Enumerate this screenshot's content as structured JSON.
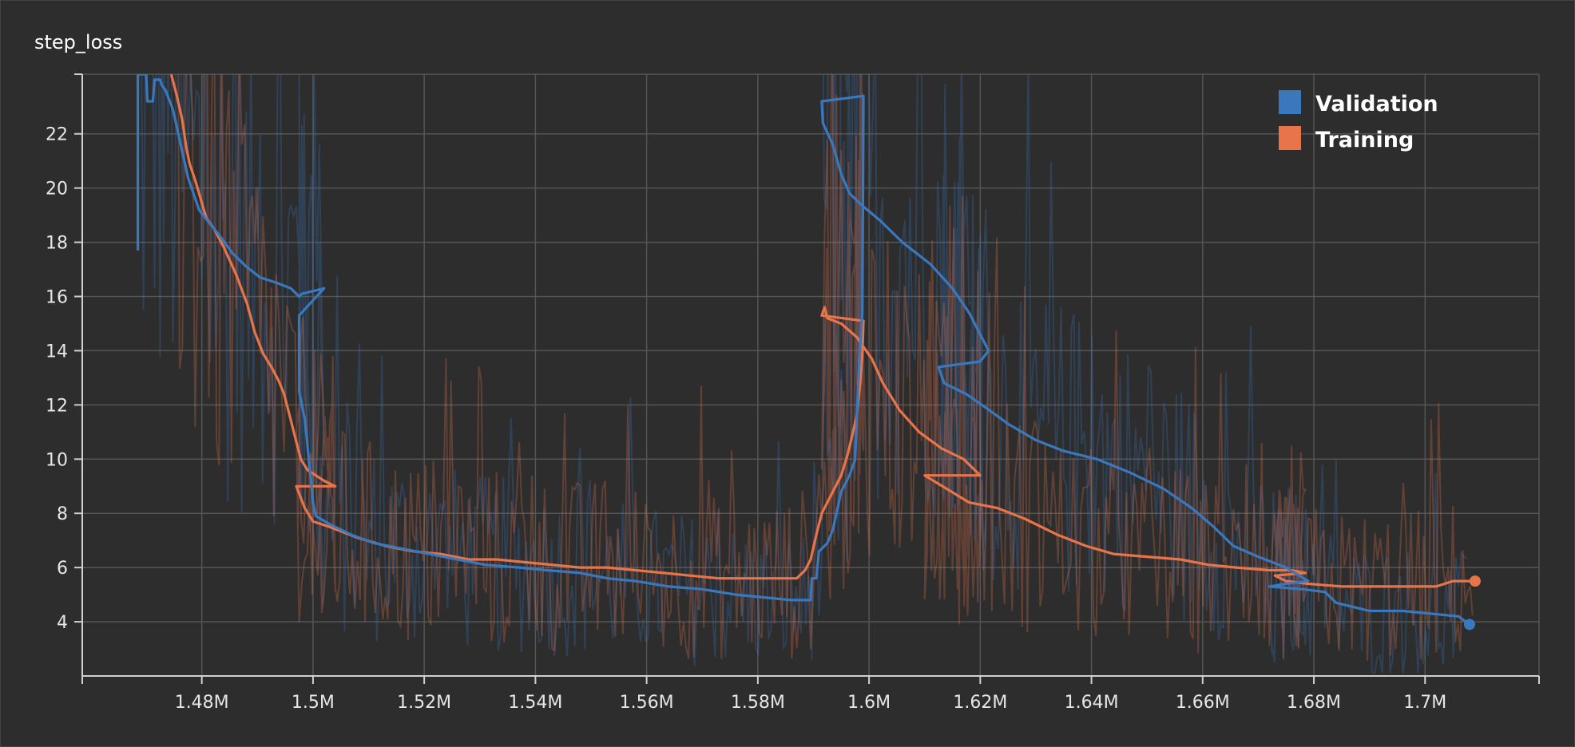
{
  "panel": {
    "title": "step_loss"
  },
  "chart_data": {
    "type": "line",
    "title": "step_loss",
    "xlabel": "",
    "ylabel": "",
    "xlim": [
      1.4585,
      1.7205
    ],
    "ylim": [
      2,
      24.2
    ],
    "x_ticks": [
      {
        "v": 1.48,
        "label": "1.48M"
      },
      {
        "v": 1.5,
        "label": "1.5M"
      },
      {
        "v": 1.52,
        "label": "1.52M"
      },
      {
        "v": 1.54,
        "label": "1.54M"
      },
      {
        "v": 1.56,
        "label": "1.56M"
      },
      {
        "v": 1.58,
        "label": "1.58M"
      },
      {
        "v": 1.6,
        "label": "1.6M"
      },
      {
        "v": 1.62,
        "label": "1.62M"
      },
      {
        "v": 1.64,
        "label": "1.64M"
      },
      {
        "v": 1.66,
        "label": "1.66M"
      },
      {
        "v": 1.68,
        "label": "1.68M"
      },
      {
        "v": 1.7,
        "label": "1.7M"
      }
    ],
    "y_ticks": [
      {
        "v": 4,
        "label": "4"
      },
      {
        "v": 6,
        "label": "6"
      },
      {
        "v": 8,
        "label": "8"
      },
      {
        "v": 10,
        "label": "10"
      },
      {
        "v": 12,
        "label": "12"
      },
      {
        "v": 14,
        "label": "14"
      },
      {
        "v": 16,
        "label": "16"
      },
      {
        "v": 18,
        "label": "18"
      },
      {
        "v": 20,
        "label": "20"
      },
      {
        "v": 22,
        "label": "22"
      }
    ],
    "grid": true,
    "legend_position": "top-right",
    "series": [
      {
        "name": "Validation",
        "color": "#3a78bd",
        "points": [
          [
            1.4685,
            17.7
          ],
          [
            1.4685,
            24.2
          ],
          [
            1.47,
            24.2
          ],
          [
            1.4702,
            23.2
          ],
          [
            1.4712,
            23.2
          ],
          [
            1.4715,
            24.0
          ],
          [
            1.4725,
            24.0
          ],
          [
            1.4728,
            23.8
          ],
          [
            1.4735,
            23.6
          ],
          [
            1.4748,
            22.9
          ],
          [
            1.476,
            21.8
          ],
          [
            1.4775,
            20.4
          ],
          [
            1.4785,
            19.8
          ],
          [
            1.4795,
            19.2
          ],
          [
            1.481,
            18.8
          ],
          [
            1.483,
            18.3
          ],
          [
            1.4855,
            17.6
          ],
          [
            1.488,
            17.1
          ],
          [
            1.4905,
            16.7
          ],
          [
            1.4935,
            16.5
          ],
          [
            1.496,
            16.3
          ],
          [
            1.4975,
            16.0
          ],
          [
            1.498,
            16.1
          ],
          [
            1.502,
            16.3
          ],
          [
            1.4975,
            15.3
          ],
          [
            1.4975,
            12.5
          ],
          [
            1.4985,
            11.5
          ],
          [
            1.4995,
            9.5
          ],
          [
            1.5,
            8.4
          ],
          [
            1.5005,
            7.9
          ],
          [
            1.503,
            7.6
          ],
          [
            1.507,
            7.2
          ],
          [
            1.511,
            6.9
          ],
          [
            1.516,
            6.7
          ],
          [
            1.521,
            6.5
          ],
          [
            1.526,
            6.3
          ],
          [
            1.531,
            6.1
          ],
          [
            1.537,
            6.0
          ],
          [
            1.542,
            5.9
          ],
          [
            1.548,
            5.8
          ],
          [
            1.553,
            5.6
          ],
          [
            1.558,
            5.5
          ],
          [
            1.564,
            5.3
          ],
          [
            1.57,
            5.2
          ],
          [
            1.576,
            5.0
          ],
          [
            1.581,
            4.9
          ],
          [
            1.586,
            4.8
          ],
          [
            1.5895,
            4.8
          ],
          [
            1.5897,
            5.6
          ],
          [
            1.5905,
            5.6
          ],
          [
            1.591,
            6.6
          ],
          [
            1.5925,
            6.9
          ],
          [
            1.5935,
            7.4
          ],
          [
            1.595,
            8.8
          ],
          [
            1.5965,
            9.4
          ],
          [
            1.5975,
            10.0
          ],
          [
            1.5982,
            13.5
          ],
          [
            1.5988,
            15.4
          ],
          [
            1.599,
            23.4
          ],
          [
            1.5915,
            23.2
          ],
          [
            1.5917,
            22.4
          ],
          [
            1.5935,
            21.6
          ],
          [
            1.595,
            20.5
          ],
          [
            1.5965,
            19.8
          ],
          [
            1.5985,
            19.4
          ],
          [
            1.602,
            18.8
          ],
          [
            1.606,
            18.0
          ],
          [
            1.611,
            17.2
          ],
          [
            1.615,
            16.3
          ],
          [
            1.618,
            15.4
          ],
          [
            1.62,
            14.6
          ],
          [
            1.6215,
            14.0
          ],
          [
            1.62,
            13.6
          ],
          [
            1.6125,
            13.4
          ],
          [
            1.6135,
            12.8
          ],
          [
            1.6175,
            12.4
          ],
          [
            1.621,
            11.9
          ],
          [
            1.625,
            11.3
          ],
          [
            1.63,
            10.7
          ],
          [
            1.635,
            10.3
          ],
          [
            1.641,
            10.0
          ],
          [
            1.647,
            9.5
          ],
          [
            1.653,
            8.9
          ],
          [
            1.658,
            8.2
          ],
          [
            1.662,
            7.5
          ],
          [
            1.6655,
            6.8
          ],
          [
            1.67,
            6.4
          ],
          [
            1.675,
            6.0
          ],
          [
            1.679,
            5.5
          ],
          [
            1.675,
            5.4
          ],
          [
            1.672,
            5.3
          ],
          [
            1.678,
            5.2
          ],
          [
            1.682,
            5.1
          ],
          [
            1.684,
            4.7
          ],
          [
            1.69,
            4.4
          ],
          [
            1.696,
            4.4
          ],
          [
            1.701,
            4.3
          ],
          [
            1.706,
            4.2
          ],
          [
            1.708,
            3.9
          ]
        ]
      },
      {
        "name": "Training",
        "color": "#e8744a",
        "points": [
          [
            1.4745,
            24.2
          ],
          [
            1.4755,
            23.4
          ],
          [
            1.4765,
            22.5
          ],
          [
            1.4772,
            21.5
          ],
          [
            1.4778,
            20.9
          ],
          [
            1.4788,
            20.3
          ],
          [
            1.4798,
            19.6
          ],
          [
            1.4808,
            18.9
          ],
          [
            1.4822,
            18.5
          ],
          [
            1.484,
            17.8
          ],
          [
            1.4862,
            16.8
          ],
          [
            1.4882,
            15.7
          ],
          [
            1.4895,
            14.7
          ],
          [
            1.491,
            13.9
          ],
          [
            1.4925,
            13.4
          ],
          [
            1.4938,
            12.9
          ],
          [
            1.4948,
            12.4
          ],
          [
            1.4958,
            11.6
          ],
          [
            1.4968,
            10.8
          ],
          [
            1.4978,
            10.0
          ],
          [
            1.499,
            9.6
          ],
          [
            1.502,
            9.2
          ],
          [
            1.504,
            9.0
          ],
          [
            1.497,
            9.0
          ],
          [
            1.4985,
            8.2
          ],
          [
            1.5,
            7.7
          ],
          [
            1.503,
            7.5
          ],
          [
            1.508,
            7.1
          ],
          [
            1.513,
            6.8
          ],
          [
            1.518,
            6.6
          ],
          [
            1.523,
            6.5
          ],
          [
            1.528,
            6.3
          ],
          [
            1.533,
            6.3
          ],
          [
            1.538,
            6.2
          ],
          [
            1.543,
            6.1
          ],
          [
            1.548,
            6.0
          ],
          [
            1.553,
            6.0
          ],
          [
            1.558,
            5.9
          ],
          [
            1.563,
            5.8
          ],
          [
            1.568,
            5.7
          ],
          [
            1.573,
            5.6
          ],
          [
            1.578,
            5.6
          ],
          [
            1.583,
            5.6
          ],
          [
            1.587,
            5.6
          ],
          [
            1.5885,
            5.9
          ],
          [
            1.5895,
            6.3
          ],
          [
            1.5905,
            7.2
          ],
          [
            1.5915,
            8.0
          ],
          [
            1.5935,
            8.8
          ],
          [
            1.595,
            9.4
          ],
          [
            1.5962,
            10.2
          ],
          [
            1.5978,
            11.6
          ],
          [
            1.5985,
            13.0
          ],
          [
            1.5988,
            13.9
          ],
          [
            1.599,
            15.1
          ],
          [
            1.5915,
            15.3
          ],
          [
            1.592,
            15.6
          ],
          [
            1.5925,
            15.2
          ],
          [
            1.595,
            15.0
          ],
          [
            1.5978,
            14.5
          ],
          [
            1.5988,
            14.2
          ],
          [
            1.6005,
            13.7
          ],
          [
            1.6025,
            12.8
          ],
          [
            1.6055,
            11.8
          ],
          [
            1.609,
            11.0
          ],
          [
            1.613,
            10.4
          ],
          [
            1.617,
            10.0
          ],
          [
            1.62,
            9.4
          ],
          [
            1.61,
            9.4
          ],
          [
            1.614,
            8.9
          ],
          [
            1.618,
            8.4
          ],
          [
            1.623,
            8.2
          ],
          [
            1.628,
            7.8
          ],
          [
            1.634,
            7.2
          ],
          [
            1.639,
            6.8
          ],
          [
            1.644,
            6.5
          ],
          [
            1.65,
            6.4
          ],
          [
            1.656,
            6.3
          ],
          [
            1.661,
            6.1
          ],
          [
            1.666,
            6.0
          ],
          [
            1.672,
            5.9
          ],
          [
            1.676,
            5.9
          ],
          [
            1.6785,
            5.8
          ],
          [
            1.673,
            5.7
          ],
          [
            1.675,
            5.5
          ],
          [
            1.679,
            5.4
          ],
          [
            1.685,
            5.3
          ],
          [
            1.691,
            5.3
          ],
          [
            1.697,
            5.3
          ],
          [
            1.702,
            5.3
          ],
          [
            1.705,
            5.5
          ],
          [
            1.709,
            5.5
          ]
        ]
      }
    ]
  }
}
